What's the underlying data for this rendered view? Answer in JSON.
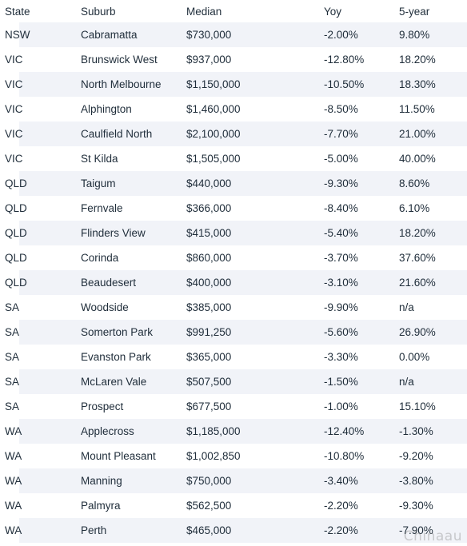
{
  "table": {
    "headers": [
      "State",
      "Suburb",
      "Median",
      "Yoy",
      "5-year"
    ],
    "rows": [
      [
        "NSW",
        "Cabramatta",
        "$730,000",
        "-2.00%",
        "9.80%"
      ],
      [
        "VIC",
        "Brunswick West",
        "$937,000",
        "-12.80%",
        "18.20%"
      ],
      [
        "VIC",
        "North Melbourne",
        "$1,150,000",
        "-10.50%",
        "18.30%"
      ],
      [
        "VIC",
        "Alphington",
        "$1,460,000",
        "-8.50%",
        "11.50%"
      ],
      [
        "VIC",
        "Caulfield North",
        "$2,100,000",
        "-7.70%",
        "21.00%"
      ],
      [
        "VIC",
        "St Kilda",
        "$1,505,000",
        "-5.00%",
        "40.00%"
      ],
      [
        "QLD",
        "Taigum",
        "$440,000",
        "-9.30%",
        "8.60%"
      ],
      [
        "QLD",
        "Fernvale",
        "$366,000",
        "-8.40%",
        "6.10%"
      ],
      [
        "QLD",
        "Flinders View",
        "$415,000",
        "-5.40%",
        "18.20%"
      ],
      [
        "QLD",
        "Corinda",
        "$860,000",
        "-3.70%",
        "37.60%"
      ],
      [
        "QLD",
        "Beaudesert",
        "$400,000",
        "-3.10%",
        "21.60%"
      ],
      [
        "SA",
        "Woodside",
        "$385,000",
        "-9.90%",
        " n/a"
      ],
      [
        "SA",
        "Somerton Park",
        "$991,250",
        "-5.60%",
        "26.90%"
      ],
      [
        "SA",
        "Evanston Park",
        "$365,000",
        "-3.30%",
        "0.00%"
      ],
      [
        "SA",
        "McLaren Vale",
        "$507,500",
        "-1.50%",
        " n/a"
      ],
      [
        "SA",
        "Prospect",
        "$677,500",
        "-1.00%",
        "15.10%"
      ],
      [
        "WA",
        "Applecross",
        "$1,185,000",
        "-12.40%",
        "-1.30%"
      ],
      [
        "WA",
        "Mount Pleasant",
        "$1,002,850",
        "-10.80%",
        "-9.20%"
      ],
      [
        "WA",
        "Manning",
        "$750,000",
        "-3.40%",
        "-3.80%"
      ],
      [
        "WA",
        "Palmyra",
        "$562,500",
        "-2.20%",
        "-9.30%"
      ],
      [
        "WA",
        "Perth",
        "$465,000",
        "-2.20%",
        "-7.90%"
      ]
    ]
  },
  "watermark": "Chinaau"
}
